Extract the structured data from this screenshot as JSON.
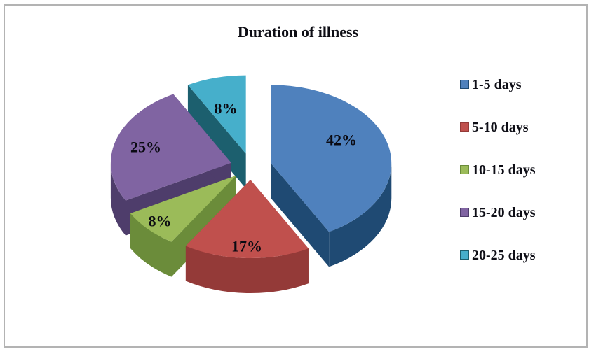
{
  "chart_data": {
    "type": "pie",
    "style": "3d-exploded",
    "title": "Duration of illness",
    "categories": [
      "1-5 days",
      "5-10 days",
      "10-15 days",
      "15-20 days",
      "20-25 days"
    ],
    "values": [
      42,
      17,
      8,
      25,
      8
    ],
    "labels": [
      "42%",
      "17%",
      "8%",
      "25%",
      "8%"
    ],
    "colors": [
      "#4F81BD",
      "#C0504D",
      "#9BBB59",
      "#8064A2",
      "#46AFCB"
    ],
    "side_colors": [
      "#1F4A73",
      "#943A38",
      "#6B8C3A",
      "#4E3D6B",
      "#1C5F6E"
    ],
    "start_angle_deg": 0,
    "direction": "clockwise",
    "legend_position": "right",
    "label_color": "#0a0a12",
    "text_color": "#0e0e16",
    "background": "#ffffff",
    "frame_border_color": "#b3b3b3"
  }
}
